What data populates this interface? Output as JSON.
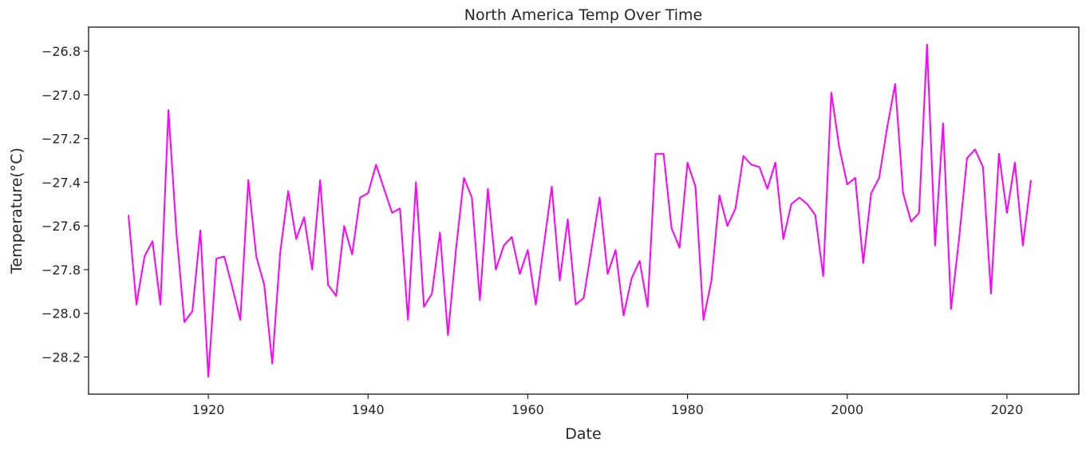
{
  "chart_data": {
    "type": "line",
    "title": "North America Temp Over Time",
    "xlabel": "Date",
    "ylabel": "Temperature($^\\circ$C)",
    "ylabel_display": "Temperature(°C)",
    "xlim": [
      1905,
      2029
    ],
    "ylim": [
      -28.37,
      -26.69
    ],
    "xticks": [
      1920,
      1940,
      1960,
      1980,
      2000,
      2020
    ],
    "yticks": [
      -28.2,
      -28.0,
      -27.8,
      -27.6,
      -27.4,
      -27.2,
      -27.0,
      -26.8
    ],
    "ytick_labels": [
      "−28.2",
      "−28.0",
      "−27.8",
      "−27.6",
      "−27.4",
      "−27.2",
      "−27.0",
      "−26.8"
    ],
    "grid": false,
    "series": [
      {
        "color": "#ff00ff",
        "x": [
          1910,
          1911,
          1912,
          1913,
          1914,
          1915,
          1916,
          1917,
          1918,
          1919,
          1920,
          1921,
          1922,
          1923,
          1924,
          1925,
          1926,
          1927,
          1928,
          1929,
          1930,
          1931,
          1932,
          1933,
          1934,
          1935,
          1936,
          1937,
          1938,
          1939,
          1940,
          1941,
          1942,
          1943,
          1944,
          1945,
          1946,
          1947,
          1948,
          1949,
          1950,
          1951,
          1952,
          1953,
          1954,
          1955,
          1956,
          1957,
          1958,
          1959,
          1960,
          1961,
          1962,
          1963,
          1964,
          1965,
          1966,
          1967,
          1968,
          1969,
          1970,
          1971,
          1972,
          1973,
          1974,
          1975,
          1976,
          1977,
          1978,
          1979,
          1980,
          1981,
          1982,
          1983,
          1984,
          1985,
          1986,
          1987,
          1988,
          1989,
          1990,
          1991,
          1992,
          1993,
          1994,
          1995,
          1996,
          1997,
          1998,
          1999,
          2000,
          2001,
          2002,
          2003,
          2004,
          2005,
          2006,
          2007,
          2008,
          2009,
          2010,
          2011,
          2012,
          2013,
          2014,
          2015,
          2016,
          2017,
          2018,
          2019,
          2020,
          2021,
          2022,
          2023
        ],
        "values": [
          -27.55,
          -27.96,
          -27.74,
          -27.67,
          -27.96,
          -27.07,
          -27.63,
          -28.04,
          -27.99,
          -27.62,
          -28.29,
          -27.75,
          -27.74,
          -27.88,
          -28.03,
          -27.39,
          -27.74,
          -27.87,
          -28.23,
          -27.72,
          -27.44,
          -27.66,
          -27.56,
          -27.8,
          -27.39,
          -27.87,
          -27.92,
          -27.6,
          -27.73,
          -27.47,
          -27.45,
          -27.32,
          -27.43,
          -27.54,
          -27.52,
          -28.03,
          -27.4,
          -27.97,
          -27.91,
          -27.63,
          -28.1,
          -27.71,
          -27.38,
          -27.47,
          -27.94,
          -27.43,
          -27.8,
          -27.69,
          -27.65,
          -27.82,
          -27.71,
          -27.96,
          -27.69,
          -27.42,
          -27.85,
          -27.57,
          -27.96,
          -27.93,
          -27.7,
          -27.47,
          -27.82,
          -27.71,
          -28.01,
          -27.84,
          -27.76,
          -27.97,
          -27.27,
          -27.27,
          -27.61,
          -27.7,
          -27.31,
          -27.42,
          -28.03,
          -27.85,
          -27.46,
          -27.6,
          -27.52,
          -27.28,
          -27.32,
          -27.33,
          -27.43,
          -27.31,
          -27.66,
          -27.5,
          -27.47,
          -27.5,
          -27.55,
          -27.83,
          -26.99,
          -27.24,
          -27.41,
          -27.38,
          -27.77,
          -27.45,
          -27.38,
          -27.15,
          -26.95,
          -27.45,
          -27.58,
          -27.54,
          -26.77,
          -27.69,
          -27.13,
          -27.98,
          -27.66,
          -27.29,
          -27.25,
          -27.33,
          -27.91,
          -27.27,
          -27.54,
          -27.31,
          -27.69,
          -27.39
        ]
      }
    ]
  }
}
